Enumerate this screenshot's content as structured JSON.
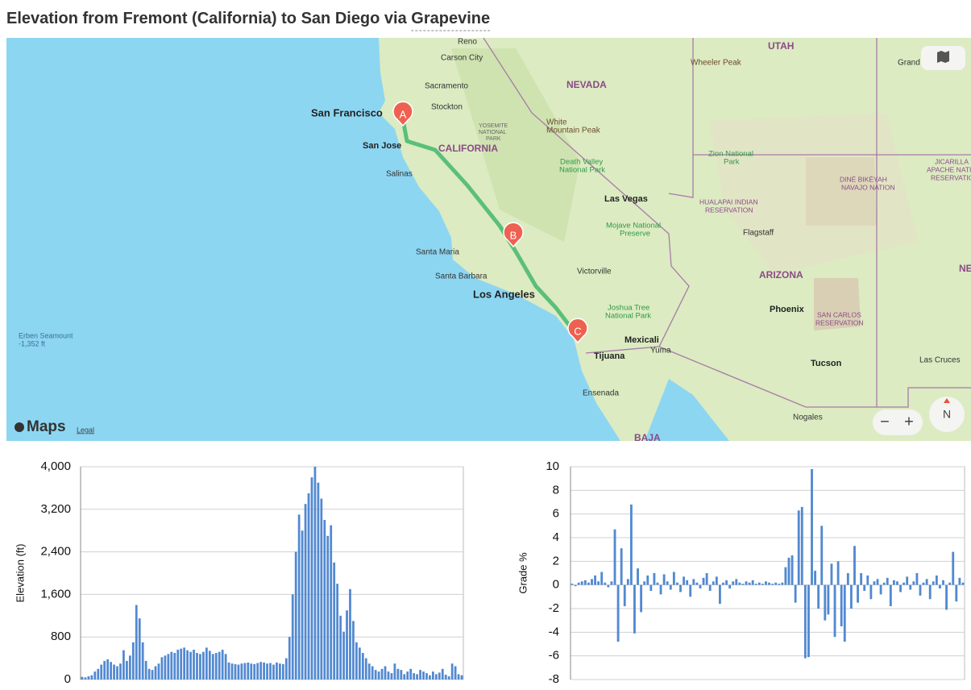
{
  "header": {
    "title": "Elevation from Fremont (California) to San Diego via ",
    "title_link": "Grapevine"
  },
  "map": {
    "labels": [
      "Reno",
      "Carson City",
      "Sacramento",
      "Stockton",
      "San Francisco",
      "San Jose",
      "CALIFORNIA",
      "Salinas",
      "NEVADA",
      "White",
      "Mountain Peak",
      "YOSEMITE",
      "NATIONAL",
      "PARK",
      "UTAH",
      "Wheeler Peak",
      "Grand",
      "Death Valley",
      "National Park",
      "Las Vegas",
      "Zion National",
      "Park",
      "HUALAPAI INDIAN",
      "RESERVATION",
      "DINÉ BIKÉYAH",
      "NAVAJO NATION",
      "JICARILLA",
      "APACHE NATIO",
      "RESERVATIO",
      "Mojave National",
      "Preserve",
      "Flagstaff",
      "Santa Maria",
      "Victorville",
      "Santa Barbara",
      "ARIZONA",
      "NE",
      "Los Angeles",
      "Joshua Tree",
      "National Park",
      "Phoenix",
      "SAN CARLOS",
      "RESERVATION",
      "Erben Seamount",
      "-1,352 ft",
      "Mexicali",
      "Tijuana",
      "Yuma",
      "Tucson",
      "Las Cruces",
      "Ensenada",
      "Nogales",
      "BAJA"
    ],
    "markers": [
      "A",
      "B",
      "C"
    ],
    "brand": "Maps",
    "legal": "Legal",
    "compass": "N",
    "zoom": [
      "−",
      "+"
    ]
  },
  "chart_data": [
    {
      "type": "bar",
      "y_label": "Elevation (ft)",
      "color": "#5289d1",
      "grid": true,
      "ylim": [
        0,
        4000
      ],
      "yticks": [
        0,
        800,
        {
          "value": 1600,
          "label": "1,600"
        },
        {
          "value": 2400,
          "label": "2,400"
        },
        {
          "value": 3200,
          "label": "3,200"
        },
        {
          "value": 4000,
          "label": "4,000"
        }
      ],
      "values": [
        50,
        40,
        60,
        80,
        150,
        200,
        280,
        350,
        380,
        330,
        280,
        250,
        300,
        550,
        350,
        450,
        700,
        1400,
        1150,
        700,
        350,
        200,
        180,
        250,
        300,
        420,
        450,
        480,
        520,
        500,
        560,
        580,
        600,
        550,
        520,
        560,
        500,
        480,
        520,
        600,
        540,
        480,
        500,
        520,
        560,
        480,
        320,
        300,
        290,
        280,
        300,
        310,
        320,
        300,
        290,
        310,
        330,
        320,
        300,
        310,
        280,
        320,
        300,
        290,
        400,
        800,
        1600,
        2400,
        3100,
        2800,
        3300,
        3500,
        3800,
        4000,
        3700,
        3400,
        3000,
        2700,
        2900,
        2200,
        1800,
        1200,
        900,
        1300,
        1700,
        1100,
        700,
        600,
        500,
        400,
        300,
        250,
        180,
        150,
        200,
        250,
        150,
        120,
        300,
        200,
        180,
        100,
        150,
        200,
        120,
        100,
        180,
        150,
        120,
        80,
        150,
        100,
        130,
        200,
        90,
        60,
        300,
        250,
        100,
        80
      ]
    },
    {
      "type": "bar",
      "y_label": "Grade %",
      "color": "#5289d1",
      "grid": true,
      "ylim": [
        -8,
        10
      ],
      "yticks": [
        -8,
        -6,
        -4,
        -2,
        0,
        2,
        4,
        6,
        8,
        10
      ],
      "values": [
        0.1,
        -0.1,
        0.2,
        0.3,
        0.4,
        0.2,
        0.5,
        0.8,
        0.3,
        1.1,
        0.2,
        -0.2,
        0.3,
        4.7,
        -4.8,
        3.1,
        -1.8,
        0.5,
        6.8,
        -4.1,
        1.4,
        -2.3,
        0.3,
        0.8,
        -0.5,
        1.0,
        0.2,
        -0.8,
        0.9,
        0.3,
        -0.4,
        1.1,
        0.2,
        -0.6,
        0.7,
        0.4,
        -1.0,
        0.5,
        0.2,
        -0.3,
        0.6,
        1.0,
        -0.5,
        0.3,
        0.7,
        -1.6,
        0.2,
        0.4,
        -0.3,
        0.3,
        0.5,
        0.2,
        0.1,
        0.3,
        0.2,
        0.4,
        0.1,
        0.2,
        0.1,
        0.3,
        0.2,
        0.1,
        0.2,
        0.1,
        0.2,
        1.5,
        2.3,
        2.5,
        -1.5,
        6.3,
        6.6,
        -6.2,
        -6.1,
        9.8,
        1.2,
        -2.0,
        5.0,
        -3.0,
        -2.5,
        1.8,
        -4.4,
        2.0,
        -3.5,
        -4.8,
        1.0,
        -2.0,
        3.3,
        -1.5,
        1.0,
        -0.5,
        0.8,
        -1.2,
        0.3,
        0.5,
        -0.8,
        0.2,
        0.6,
        -1.8,
        0.4,
        0.3,
        -0.6,
        0.2,
        0.7,
        -0.4,
        0.3,
        1.0,
        -0.9,
        0.2,
        0.5,
        -1.2,
        0.3,
        0.8,
        -0.3,
        0.4,
        -2.1,
        0.2,
        2.8,
        -1.4,
        0.6,
        0.2
      ]
    }
  ]
}
